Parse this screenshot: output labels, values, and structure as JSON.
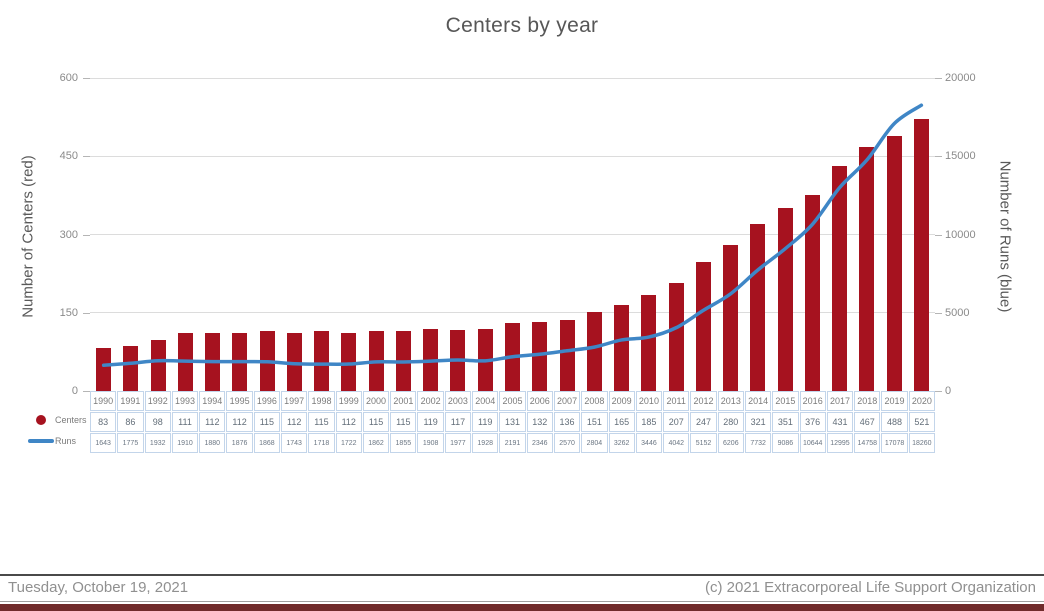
{
  "title": "Centers by year",
  "footer": {
    "date": "Tuesday, October 19, 2021",
    "copyright": "(c) 2021 Extracorporeal Life Support Organization"
  },
  "colors": {
    "bar": "#A6121F",
    "line": "#3F86C6",
    "grid": "#DCDCDC",
    "table_border": "#C3D5EA",
    "footer_bar": "#702B2B"
  },
  "chart_data": {
    "type": "bar",
    "subtype": "dual-axis bar+line",
    "title": "Centers by year",
    "categories": [
      "1990",
      "1991",
      "1992",
      "1993",
      "1994",
      "1995",
      "1996",
      "1997",
      "1998",
      "1999",
      "2000",
      "2001",
      "2002",
      "2003",
      "2004",
      "2005",
      "2006",
      "2007",
      "2008",
      "2009",
      "2010",
      "2011",
      "2012",
      "2013",
      "2014",
      "2015",
      "2016",
      "2017",
      "2018",
      "2019",
      "2020"
    ],
    "series": [
      {
        "name": "Centers",
        "type": "bar",
        "axis": "left",
        "color": "#A6121F",
        "values": [
          83,
          86,
          98,
          111,
          112,
          112,
          115,
          112,
          115,
          112,
          115,
          115,
          119,
          117,
          119,
          131,
          132,
          136,
          151,
          165,
          185,
          207,
          247,
          280,
          321,
          351,
          376,
          431,
          467,
          488,
          521
        ]
      },
      {
        "name": "Runs",
        "type": "line",
        "axis": "right",
        "color": "#3F86C6",
        "values": [
          1643,
          1775,
          1932,
          1910,
          1880,
          1876,
          1868,
          1743,
          1718,
          1722,
          1862,
          1855,
          1908,
          1977,
          1928,
          2191,
          2346,
          2570,
          2804,
          3262,
          3446,
          4042,
          5152,
          6206,
          7732,
          9086,
          10644,
          12995,
          14758,
          17078,
          18260
        ]
      }
    ],
    "left_axis": {
      "label": "Number of Centers (red)",
      "ticks": [
        0,
        150,
        300,
        450,
        600
      ],
      "range": [
        0,
        600
      ]
    },
    "right_axis": {
      "label": "Number of Runs (blue)",
      "ticks": [
        0,
        5000,
        10000,
        15000,
        20000
      ],
      "range": [
        0,
        20000
      ]
    },
    "grid": "horizontal",
    "legend_position": "bottom-left",
    "data_table_shown": true
  }
}
